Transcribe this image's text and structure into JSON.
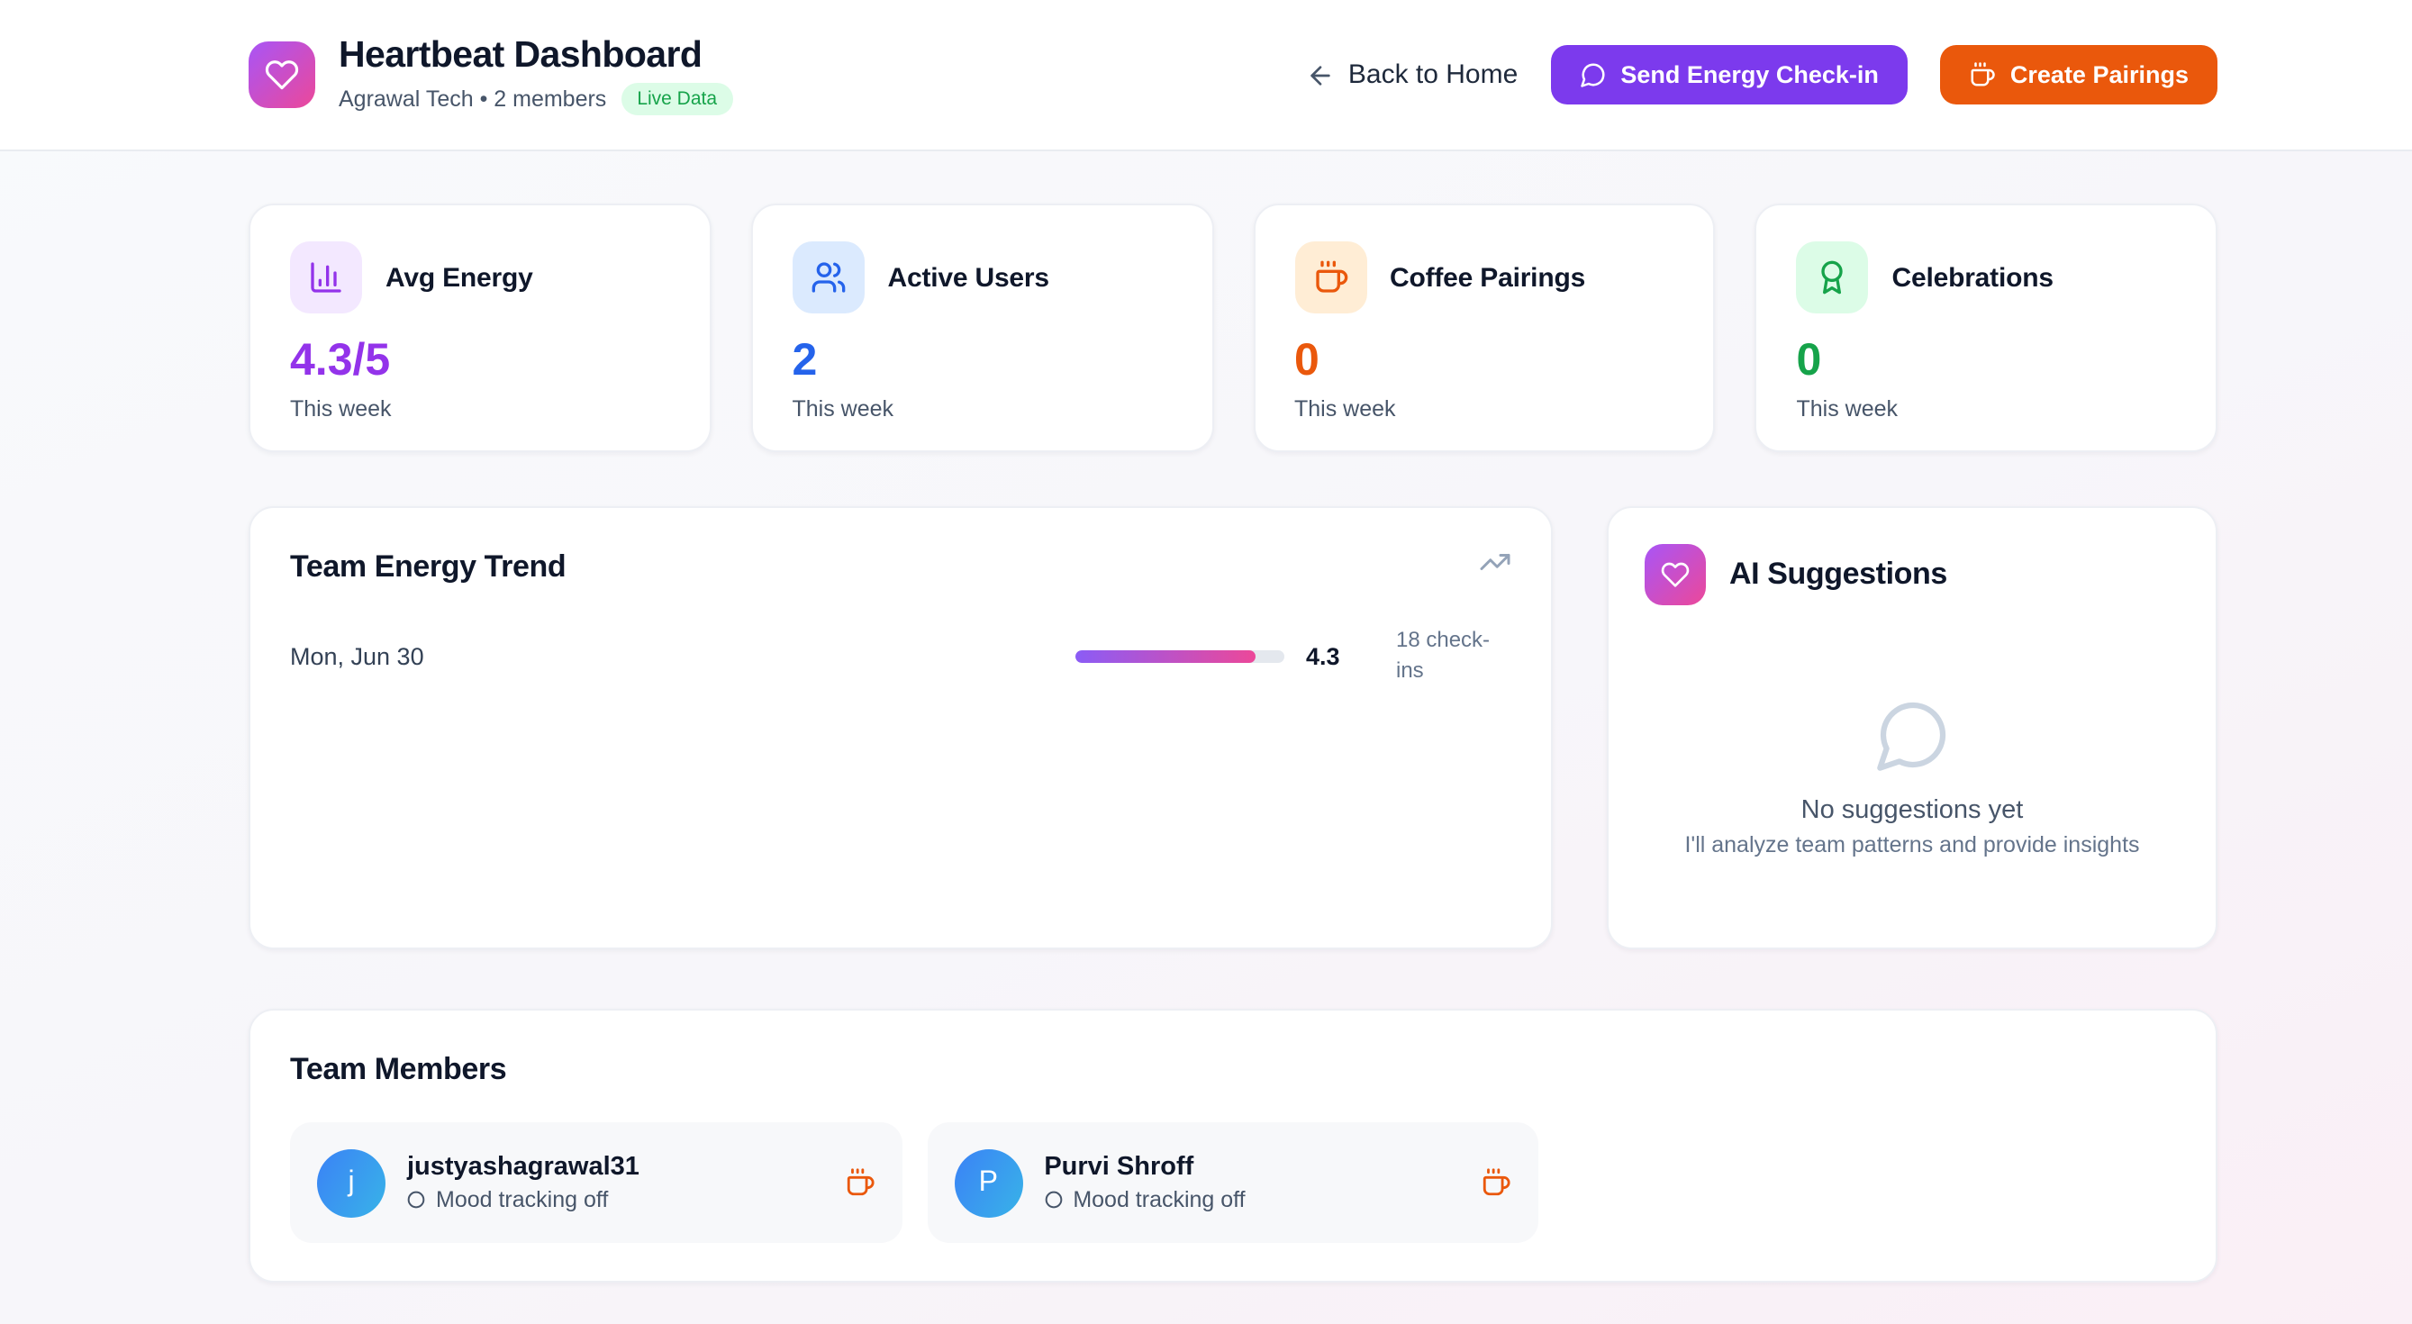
{
  "header": {
    "title": "Heartbeat Dashboard",
    "subtitle": "Agrawal Tech • 2 members",
    "live_badge": "Live Data",
    "back_label": "Back to Home",
    "send_checkin_label": "Send Energy Check-in",
    "create_pairings_label": "Create Pairings",
    "accent_purple": "#7c3aed",
    "accent_orange": "#ea580c",
    "logo_gradient": [
      "#a855f7",
      "#ec4899"
    ],
    "logo_icon": "heart-icon"
  },
  "stats": [
    {
      "label": "Avg Energy",
      "value": "4.3/5",
      "caption": "This week",
      "icon": "bar-chart-icon",
      "color": "#9333ea",
      "icon_bg": "#f3e8ff"
    },
    {
      "label": "Active Users",
      "value": "2",
      "caption": "This week",
      "icon": "users-icon",
      "color": "#2563eb",
      "icon_bg": "#dbeafe"
    },
    {
      "label": "Coffee Pairings",
      "value": "0",
      "caption": "This week",
      "icon": "coffee-icon",
      "color": "#ea580c",
      "icon_bg": "#ffedd5"
    },
    {
      "label": "Celebrations",
      "value": "0",
      "caption": "This week",
      "icon": "award-icon",
      "color": "#16a34a",
      "icon_bg": "#dcfce7"
    }
  ],
  "chart_data": {
    "type": "bar",
    "title": "Team Energy Trend",
    "categories": [
      "Mon, Jun 30"
    ],
    "values": [
      4.3
    ],
    "value_labels": [
      "4.3"
    ],
    "annotations": [
      "18 check-ins"
    ],
    "ylim": [
      0,
      5
    ],
    "bar_gradient": [
      "#8b5cf6",
      "#ec4899"
    ],
    "track_color": "#e4e8ee",
    "header_icon": "trending-up-icon"
  },
  "ai": {
    "title": "AI Suggestions",
    "icon": "heart-icon",
    "empty_icon": "message-circle-icon",
    "empty_title": "No suggestions yet",
    "empty_subtitle": "I'll analyze team patterns and provide insights"
  },
  "team": {
    "title": "Team Members",
    "members": [
      {
        "initial": "j",
        "name": "justyashagrawal31",
        "status": "Mood tracking off",
        "status_icon": "circle-icon",
        "action_icon": "coffee-icon"
      },
      {
        "initial": "P",
        "name": "Purvi Shroff",
        "status": "Mood tracking off",
        "status_icon": "circle-icon",
        "action_icon": "coffee-icon"
      }
    ],
    "avatar_gradient": [
      "#3b82f6",
      "#38b3e8"
    ]
  }
}
